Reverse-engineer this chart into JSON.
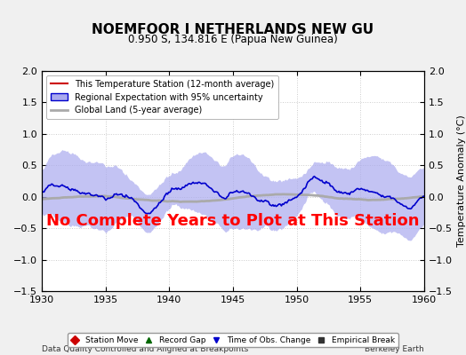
{
  "title": "NOEMFOOR I NETHERLANDS NEW GU",
  "subtitle": "0.950 S, 134.816 E (Papua New Guinea)",
  "xlabel_left": "Data Quality Controlled and Aligned at Breakpoints",
  "xlabel_right": "Berkeley Earth",
  "ylabel": "Temperature Anomaly (°C)",
  "xlim": [
    1930,
    1960
  ],
  "ylim": [
    -1.5,
    2.0
  ],
  "yticks": [
    -1.5,
    -1.0,
    -0.5,
    0.0,
    0.5,
    1.0,
    1.5,
    2.0
  ],
  "xticks": [
    1930,
    1935,
    1940,
    1945,
    1950,
    1955,
    1960
  ],
  "annotation": "No Complete Years to Plot at This Station",
  "annotation_color": "#ff0000",
  "background_color": "#f0f0f0",
  "plot_bg_color": "#ffffff",
  "regional_line_color": "#0000cc",
  "regional_fill_color": "#aaaaee",
  "station_line_color": "#cc0000",
  "global_line_color": "#aaaaaa",
  "legend_items": [
    {
      "label": "This Temperature Station (12-month average)",
      "color": "#cc0000",
      "lw": 1.5
    },
    {
      "label": "Regional Expectation with 95% uncertainty",
      "color": "#0000cc",
      "lw": 1.5
    },
    {
      "label": "Global Land (5-year average)",
      "color": "#aaaaaa",
      "lw": 2.0
    }
  ],
  "bottom_legend": [
    {
      "label": "Station Move",
      "marker": "D",
      "color": "#cc0000"
    },
    {
      "label": "Record Gap",
      "marker": "^",
      "color": "#006600"
    },
    {
      "label": "Time of Obs. Change",
      "marker": "v",
      "color": "#0000cc"
    },
    {
      "label": "Empirical Break",
      "marker": "s",
      "color": "#333333"
    }
  ]
}
